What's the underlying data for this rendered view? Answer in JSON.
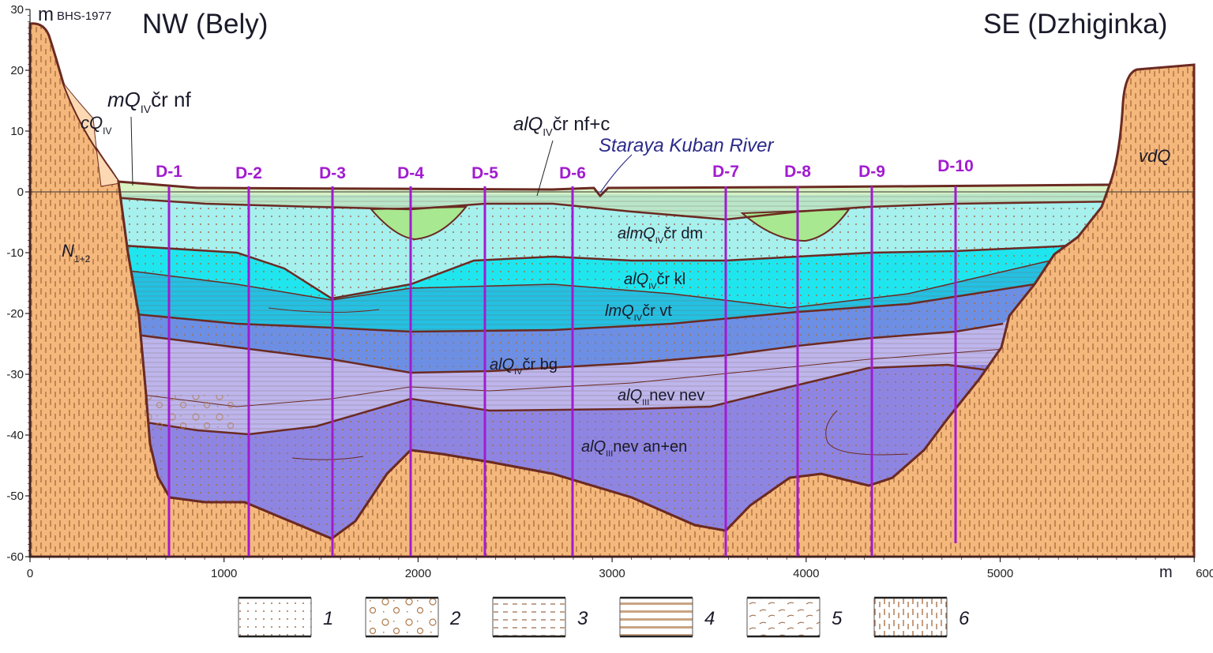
{
  "header": {
    "left_title": "NW (Bely)",
    "right_title": "SE (Dzhiginka)",
    "y_unit": "m",
    "datum": "BHS-1977",
    "x_unit": "m"
  },
  "axes": {
    "y_ticks": [
      "30",
      "20",
      "10",
      "0",
      "-10",
      "-20",
      "-30",
      "-40",
      "-50",
      "-60"
    ],
    "x_ticks": [
      "0",
      "1000",
      "2000",
      "3000",
      "4000",
      "5000",
      "6000"
    ]
  },
  "river_label": "Staraya Kuban River",
  "unit_labels": {
    "cq": {
      "pre": "cQ",
      "sub": "IV",
      "post": ""
    },
    "mq": {
      "pre": "mQ",
      "sub": "IV",
      "post": "čr nf"
    },
    "alq_nfc": {
      "pre": "alQ",
      "sub": "IV",
      "post": "čr nf+c"
    },
    "almq_dm": {
      "pre": "almQ",
      "sub": "IV",
      "post": "čr dm"
    },
    "alq_kl": {
      "pre": "alQ",
      "sub": "IV",
      "post": "čr kl"
    },
    "lmq_vt": {
      "pre": "lmQ",
      "sub": "IV",
      "post": "čr vt"
    },
    "alq_bg": {
      "pre": "alQ",
      "sub": "IV",
      "post": "čr bg"
    },
    "alq_nev": {
      "pre": "alQ",
      "sub": "III",
      "post": "nev nev"
    },
    "alq_an": {
      "pre": "alQ",
      "sub": "III",
      "post": "nev an+en"
    },
    "n12": {
      "pre": "N",
      "sub": "1+2",
      "post": ""
    },
    "vdq": {
      "pre": "vdQ",
      "sub": "",
      "post": ""
    }
  },
  "boreholes": [
    "D-1",
    "D-2",
    "D-3",
    "D-4",
    "D-5",
    "D-6",
    "D-7",
    "D-8",
    "D-9",
    "D-10"
  ],
  "legend": [
    "1",
    "2",
    "3",
    "4",
    "5",
    "6"
  ],
  "colors": {
    "bedrock": "#f5b87c",
    "slope": "#fcd9b2",
    "nf_c": "#d9f2c4",
    "nf": "#b9e6c8",
    "lens": "#a8e890",
    "dm": "#a6f0ee",
    "kl": "#1fe6ee",
    "vt": "#24c0e2",
    "bg": "#6c8fe4",
    "nev": "#bdb5ec",
    "an": "#8e85e2",
    "borehole": "#a21bd0",
    "contact": "#6b2a22"
  }
}
